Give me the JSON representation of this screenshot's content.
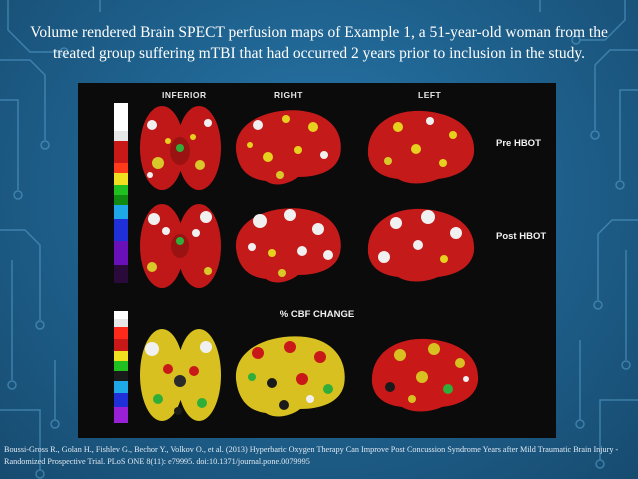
{
  "title_line1": "Volume rendered Brain SPECT perfusion maps of Example 1, a 51-year-old woman from the",
  "title_line2": "treated group suffering mTBI that had occurred 2 years prior to inclusion in the study.",
  "figure": {
    "columns": [
      "INFERIOR",
      "RIGHT",
      "LEFT"
    ],
    "rows": [
      "Pre HBOT",
      "Post HBOT"
    ],
    "change_header": "% CBF CHANGE"
  },
  "caption_line1": "Boussi-Gross R., Golan H., Fishlev G., Bechor Y., Volkov O., et al. (2013) Hyperbaric Oxygen Therapy Can Improve Post Concussion Syndrome Years after Mild Traumatic Brain Injury -",
  "caption_line2": "Randomized Prospective Trial. PLoS ONE 8(11): e79995. doi:10.1371/journal.pone.0079995",
  "colors": {
    "background": "#1f6390",
    "figure_bg": "#0b0b0b",
    "perfusion_red": "#c81a1a",
    "perfusion_yellow": "#e6d21e",
    "perfusion_white": "#f0f0f0"
  }
}
